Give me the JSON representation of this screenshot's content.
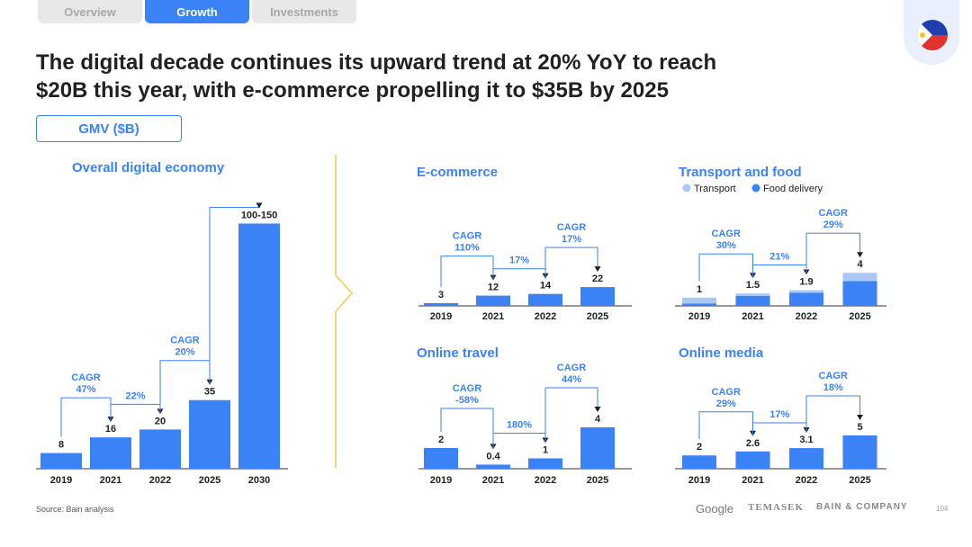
{
  "tabs": [
    {
      "label": "Overview",
      "active": false
    },
    {
      "label": "Growth",
      "active": true
    },
    {
      "label": "Investments",
      "active": false
    }
  ],
  "title_line1": "The digital decade continues its upward trend at 20% YoY to reach",
  "title_line2": "$20B this year, with e-commerce propelling it to $35B by 2025",
  "gmv_label": "GMV ($B)",
  "source": "Source: Bain analysis",
  "footer": {
    "google": "Google",
    "temasek": "TEMASEK",
    "bain": "BAIN & COMPANY",
    "page": "104"
  },
  "colors": {
    "bar": "#3b82f6",
    "bar_light": "#a9c8f5",
    "text_blue": "#3b82f6",
    "divider": "#f2c94c"
  },
  "chart_data": [
    {
      "type": "bar",
      "title": "Overall digital economy",
      "categories": [
        "2019",
        "2021",
        "2022",
        "2025",
        "2030"
      ],
      "values": [
        8,
        16,
        20,
        35,
        125
      ],
      "value_labels": [
        "8",
        "16",
        "20",
        "35",
        "100-150"
      ],
      "annotations": [
        {
          "from": "2019",
          "to": "2021",
          "text": [
            "CAGR",
            "47%"
          ]
        },
        {
          "from": "2021",
          "to": "2022",
          "text": [
            "22%"
          ]
        },
        {
          "from": "2022",
          "to": "2025",
          "text": [
            "CAGR",
            "20%"
          ]
        },
        {
          "from": "2025",
          "to": "2030",
          "text": []
        }
      ]
    },
    {
      "type": "bar",
      "title": "E-commerce",
      "categories": [
        "2019",
        "2021",
        "2022",
        "2025"
      ],
      "values": [
        3,
        12,
        14,
        22
      ],
      "value_labels": [
        "3",
        "12",
        "14",
        "22"
      ],
      "annotations": [
        {
          "from": "2019",
          "to": "2021",
          "text": [
            "CAGR",
            "110%"
          ]
        },
        {
          "from": "2021",
          "to": "2022",
          "text": [
            "17%"
          ]
        },
        {
          "from": "2022",
          "to": "2025",
          "text": [
            "CAGR",
            "17%"
          ]
        }
      ]
    },
    {
      "type": "bar",
      "title": "Transport and food",
      "legend": [
        "Transport",
        "Food delivery"
      ],
      "categories": [
        "2019",
        "2021",
        "2022",
        "2025"
      ],
      "series": [
        {
          "name": "Food delivery",
          "values": [
            0.3,
            1.2,
            1.6,
            3.0
          ]
        },
        {
          "name": "Transport",
          "values": [
            0.7,
            0.3,
            0.3,
            1.0
          ]
        }
      ],
      "values": [
        1,
        1.5,
        1.9,
        4
      ],
      "value_labels": [
        "1",
        "1.5",
        "1.9",
        "4"
      ],
      "annotations": [
        {
          "from": "2019",
          "to": "2021",
          "text": [
            "CAGR",
            "30%"
          ]
        },
        {
          "from": "2021",
          "to": "2022",
          "text": [
            "21%"
          ]
        },
        {
          "from": "2022",
          "to": "2025",
          "text": [
            "CAGR",
            "29%"
          ]
        }
      ]
    },
    {
      "type": "bar",
      "title": "Online travel",
      "categories": [
        "2019",
        "2021",
        "2022",
        "2025"
      ],
      "values": [
        2,
        0.4,
        1,
        4
      ],
      "value_labels": [
        "2",
        "0.4",
        "1",
        "4"
      ],
      "annotations": [
        {
          "from": "2019",
          "to": "2021",
          "text": [
            "CAGR",
            "-58%"
          ]
        },
        {
          "from": "2021",
          "to": "2022",
          "text": [
            "180%"
          ]
        },
        {
          "from": "2022",
          "to": "2025",
          "text": [
            "CAGR",
            "44%"
          ]
        }
      ]
    },
    {
      "type": "bar",
      "title": "Online media",
      "categories": [
        "2019",
        "2021",
        "2022",
        "2025"
      ],
      "values": [
        2,
        2.6,
        3.1,
        5
      ],
      "value_labels": [
        "2",
        "2.6",
        "3.1",
        "5"
      ],
      "annotations": [
        {
          "from": "2019",
          "to": "2021",
          "text": [
            "CAGR",
            "29%"
          ]
        },
        {
          "from": "2021",
          "to": "2022",
          "text": [
            "17%"
          ]
        },
        {
          "from": "2022",
          "to": "2025",
          "text": [
            "CAGR",
            "18%"
          ]
        }
      ]
    }
  ]
}
